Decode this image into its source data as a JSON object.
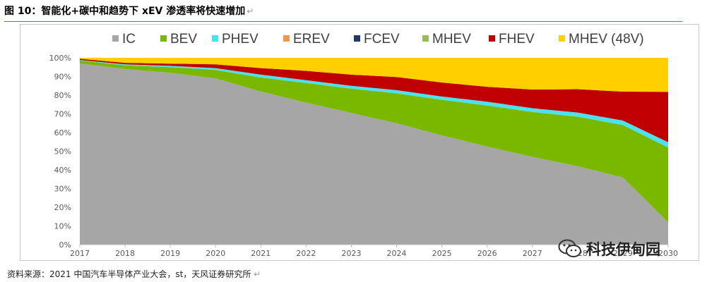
{
  "header": {
    "title": "图 10：智能化+碳中和趋势下 xEV 渗透率将快速增加",
    "return_mark": "↵"
  },
  "footer": {
    "source": "资料来源：2021 中国汽车半导体产业大会，st，天风证券研究所",
    "return_mark": "↵"
  },
  "watermark": {
    "text": "科技伊甸园",
    "icon": "wechat-icon"
  },
  "chart_data": {
    "type": "area",
    "stacked": true,
    "title": "",
    "xlabel": "",
    "ylabel": "",
    "x": [
      2017,
      2018,
      2019,
      2020,
      2021,
      2022,
      2023,
      2024,
      2025,
      2026,
      2027,
      2028,
      2029,
      2030
    ],
    "x_tick_labels": [
      "2017",
      "2018",
      "2019",
      "2020",
      "2021",
      "2022",
      "2023",
      "2024",
      "2025",
      "2026",
      "2027",
      "2028",
      "2029",
      "2030"
    ],
    "ylim": [
      0,
      100
    ],
    "y_ticks": [
      0,
      10,
      20,
      30,
      40,
      50,
      60,
      70,
      80,
      90,
      100
    ],
    "y_tick_labels": [
      "0%",
      "10%",
      "20%",
      "30%",
      "40%",
      "50%",
      "60%",
      "70%",
      "80%",
      "90%",
      "100%"
    ],
    "legend_position": "top",
    "grid": false,
    "series": [
      {
        "name": "IC",
        "color": "#a6a6a6",
        "values": [
          97,
          94,
          92,
          89,
          82,
          76,
          70.5,
          65,
          58.5,
          52.5,
          47,
          42,
          36,
          12
        ]
      },
      {
        "name": "BEV",
        "color": "#7ab800",
        "values": [
          1.5,
          2,
          3,
          4.5,
          7.5,
          10.5,
          13,
          16,
          19,
          22,
          24,
          26.5,
          28,
          40
        ]
      },
      {
        "name": "PHEV",
        "color": "#4ae2ef",
        "values": [
          0.3,
          0.5,
          0.7,
          1,
          1.5,
          1.5,
          1.5,
          1.7,
          1.8,
          2,
          2,
          2.2,
          2.4,
          2.8
        ]
      },
      {
        "name": "EREV",
        "color": "#f79646",
        "values": [
          0,
          0,
          0,
          0,
          0,
          0,
          0,
          0,
          0,
          0,
          0,
          0,
          0,
          0
        ]
      },
      {
        "name": "FCEV",
        "color": "#1f3864",
        "values": [
          0,
          0,
          0,
          0,
          0,
          0,
          0,
          0,
          0,
          0,
          0,
          0,
          0,
          0
        ]
      },
      {
        "name": "MHEV",
        "color": "#9bbb59",
        "values": [
          0,
          0,
          0,
          0,
          0,
          0,
          0,
          0,
          0,
          0,
          0,
          0,
          0,
          0
        ]
      },
      {
        "name": "FHEV",
        "color": "#c00000",
        "values": [
          0.7,
          0.8,
          1.2,
          2,
          3.5,
          5,
          6,
          7,
          7.5,
          8,
          10,
          12.5,
          15.5,
          27
        ]
      },
      {
        "name": "MHEV (48V)",
        "color": "#ffd000",
        "values": [
          0.5,
          2.7,
          3.1,
          3.5,
          5.5,
          7,
          9,
          10.3,
          13.2,
          15.5,
          17,
          16.8,
          18.1,
          18.2
        ]
      }
    ]
  }
}
